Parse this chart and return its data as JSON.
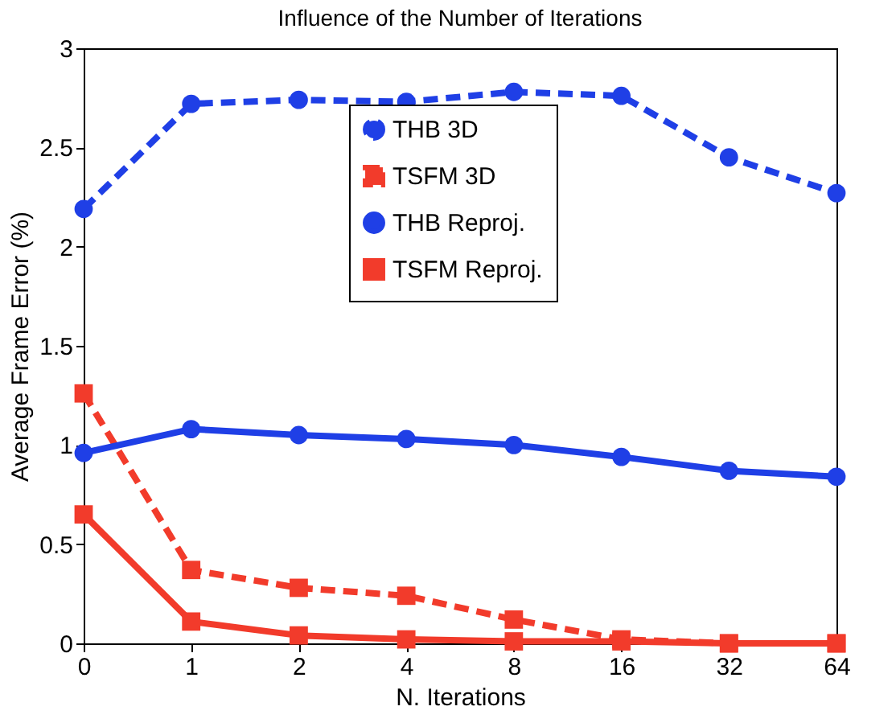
{
  "chart_data": {
    "type": "line",
    "title": "Influence of the Number of Iterations",
    "xlabel": "N. Iterations",
    "ylabel": "Average Frame Error (%)",
    "categories": [
      "0",
      "1",
      "2",
      "4",
      "8",
      "16",
      "32",
      "64"
    ],
    "ylim": [
      0,
      3
    ],
    "yticks": [
      0,
      0.5,
      1,
      1.5,
      2,
      2.5,
      3
    ],
    "grid": false,
    "legend": "top",
    "series": [
      {
        "name": "THB 3D",
        "color": "#1f3fe6",
        "line_style": "dashed",
        "marker": "circle",
        "values": [
          2.19,
          2.72,
          2.74,
          2.73,
          2.78,
          2.76,
          2.45,
          2.27
        ]
      },
      {
        "name": "TSFM 3D",
        "color": "#f23b2b",
        "line_style": "dashed",
        "marker": "square",
        "values": [
          1.26,
          0.37,
          0.28,
          0.24,
          0.12,
          0.02,
          0.0,
          0.0
        ]
      },
      {
        "name": "THB Reproj.",
        "color": "#1f3fe6",
        "line_style": "solid",
        "marker": "circle",
        "values": [
          0.96,
          1.08,
          1.05,
          1.03,
          1.0,
          0.94,
          0.87,
          0.84
        ]
      },
      {
        "name": "TSFM Reproj.",
        "color": "#f23b2b",
        "line_style": "solid",
        "marker": "square",
        "values": [
          0.65,
          0.11,
          0.04,
          0.02,
          0.01,
          0.01,
          0.0,
          0.0
        ]
      }
    ]
  }
}
